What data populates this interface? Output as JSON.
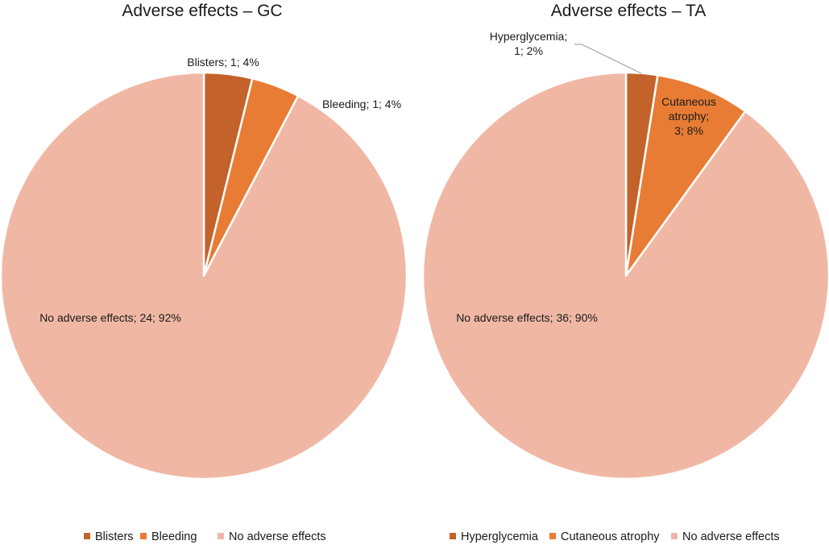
{
  "chart_data": [
    {
      "type": "pie",
      "title": "Adverse effects – GC",
      "categories": [
        "Blisters",
        "Bleeding",
        "No adverse effects"
      ],
      "values": [
        1,
        1,
        24
      ],
      "percents": [
        4,
        4,
        92
      ],
      "data_labels": [
        [
          "Blisters; 1; 4%"
        ],
        [
          "Bleeding; 1; 4%"
        ],
        [
          "No adverse effects; 24; 92%"
        ]
      ],
      "colors": [
        "#c3622a",
        "#e87c35",
        "#f0b8a4"
      ],
      "start_angle": "12 o'clock, clockwise",
      "legend": "bottom"
    },
    {
      "type": "pie",
      "title": "Adverse effects – TA",
      "categories": [
        "Hyperglycemia",
        "Cutaneous atrophy",
        "No adverse effects"
      ],
      "values": [
        1,
        3,
        36
      ],
      "percents": [
        2,
        8,
        90
      ],
      "data_labels": [
        [
          "Hyperglycemia;",
          "1; 2%"
        ],
        [
          "Cutaneous",
          "atrophy;",
          "3; 8%"
        ],
        [
          "No adverse effects; 36; 90%"
        ]
      ],
      "colors": [
        "#c3622a",
        "#e87c35",
        "#f0b8a4"
      ],
      "start_angle": "12 o'clock, clockwise",
      "legend": "bottom"
    }
  ]
}
